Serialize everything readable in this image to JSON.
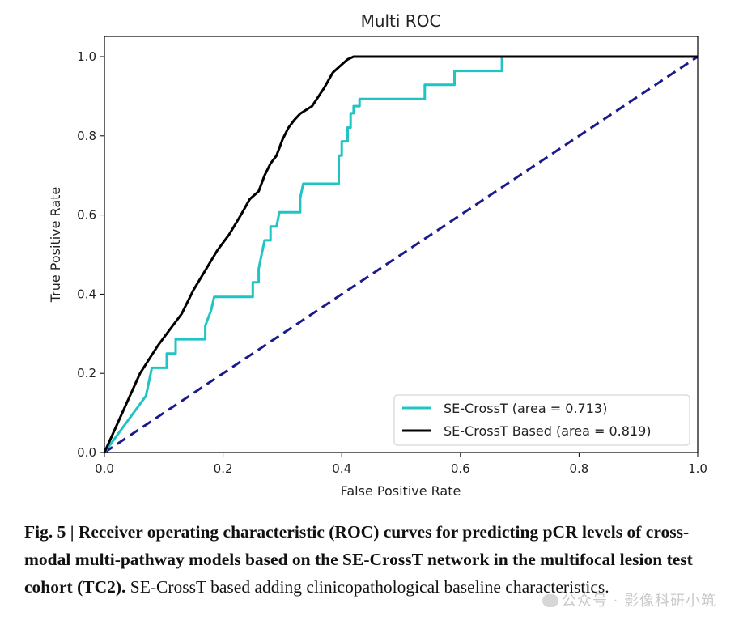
{
  "chart_data": {
    "type": "line",
    "title": "Multi ROC",
    "xlabel": "False Positive Rate",
    "ylabel": "True Positive Rate",
    "xlim": [
      0.0,
      1.0
    ],
    "ylim": [
      0.0,
      1.0
    ],
    "xticks": [
      "0.0",
      "0.2",
      "0.4",
      "0.6",
      "0.8",
      "1.0"
    ],
    "yticks": [
      "0.0",
      "0.2",
      "0.4",
      "0.6",
      "0.8",
      "1.0"
    ],
    "grid": false,
    "legend_position": "bottom-right",
    "series": [
      {
        "name": "SE-CrossT (area = 0.713)",
        "color": "#1fc4c4",
        "style": "solid",
        "points": [
          [
            0.0,
            0.0
          ],
          [
            0.07,
            0.143
          ],
          [
            0.08,
            0.214
          ],
          [
            0.105,
            0.214
          ],
          [
            0.105,
            0.25
          ],
          [
            0.12,
            0.25
          ],
          [
            0.12,
            0.286
          ],
          [
            0.17,
            0.286
          ],
          [
            0.17,
            0.32
          ],
          [
            0.18,
            0.36
          ],
          [
            0.185,
            0.393
          ],
          [
            0.25,
            0.393
          ],
          [
            0.25,
            0.43
          ],
          [
            0.26,
            0.43
          ],
          [
            0.26,
            0.464
          ],
          [
            0.265,
            0.5
          ],
          [
            0.27,
            0.536
          ],
          [
            0.28,
            0.536
          ],
          [
            0.28,
            0.571
          ],
          [
            0.29,
            0.571
          ],
          [
            0.295,
            0.607
          ],
          [
            0.33,
            0.607
          ],
          [
            0.33,
            0.643
          ],
          [
            0.335,
            0.679
          ],
          [
            0.395,
            0.679
          ],
          [
            0.395,
            0.75
          ],
          [
            0.4,
            0.75
          ],
          [
            0.4,
            0.786
          ],
          [
            0.41,
            0.786
          ],
          [
            0.41,
            0.821
          ],
          [
            0.415,
            0.821
          ],
          [
            0.415,
            0.857
          ],
          [
            0.42,
            0.857
          ],
          [
            0.42,
            0.875
          ],
          [
            0.43,
            0.875
          ],
          [
            0.43,
            0.893
          ],
          [
            0.54,
            0.893
          ],
          [
            0.54,
            0.929
          ],
          [
            0.59,
            0.929
          ],
          [
            0.59,
            0.964
          ],
          [
            0.67,
            0.964
          ],
          [
            0.67,
            1.0
          ],
          [
            1.0,
            1.0
          ]
        ]
      },
      {
        "name": "SE-CrossT Based (area = 0.819)",
        "color": "#000000",
        "style": "solid",
        "points": [
          [
            0.0,
            0.0
          ],
          [
            0.03,
            0.1
          ],
          [
            0.06,
            0.2
          ],
          [
            0.09,
            0.27
          ],
          [
            0.11,
            0.31
          ],
          [
            0.13,
            0.35
          ],
          [
            0.15,
            0.41
          ],
          [
            0.17,
            0.46
          ],
          [
            0.19,
            0.51
          ],
          [
            0.21,
            0.55
          ],
          [
            0.23,
            0.6
          ],
          [
            0.245,
            0.64
          ],
          [
            0.26,
            0.66
          ],
          [
            0.27,
            0.7
          ],
          [
            0.28,
            0.73
          ],
          [
            0.29,
            0.75
          ],
          [
            0.3,
            0.79
          ],
          [
            0.31,
            0.82
          ],
          [
            0.32,
            0.84
          ],
          [
            0.33,
            0.856
          ],
          [
            0.35,
            0.875
          ],
          [
            0.37,
            0.92
          ],
          [
            0.385,
            0.96
          ],
          [
            0.4,
            0.98
          ],
          [
            0.41,
            0.993
          ],
          [
            0.42,
            1.0
          ],
          [
            1.0,
            1.0
          ]
        ]
      },
      {
        "color": "#1a1a8c",
        "style": "dashed",
        "points": [
          [
            0.0,
            0.0
          ],
          [
            1.0,
            1.0
          ]
        ]
      }
    ]
  },
  "caption": {
    "bold": "Fig. 5 | Receiver operating characteristic (ROC) curves for predicting pCR levels of cross-modal multi-pathway models based on the SE-CrossT network in the multifocal lesion test cohort (TC2).",
    "normal": " SE-CrossT based adding clinicopathological baseline characteristics."
  },
  "watermark": "公众号 · 影像科研小筑"
}
